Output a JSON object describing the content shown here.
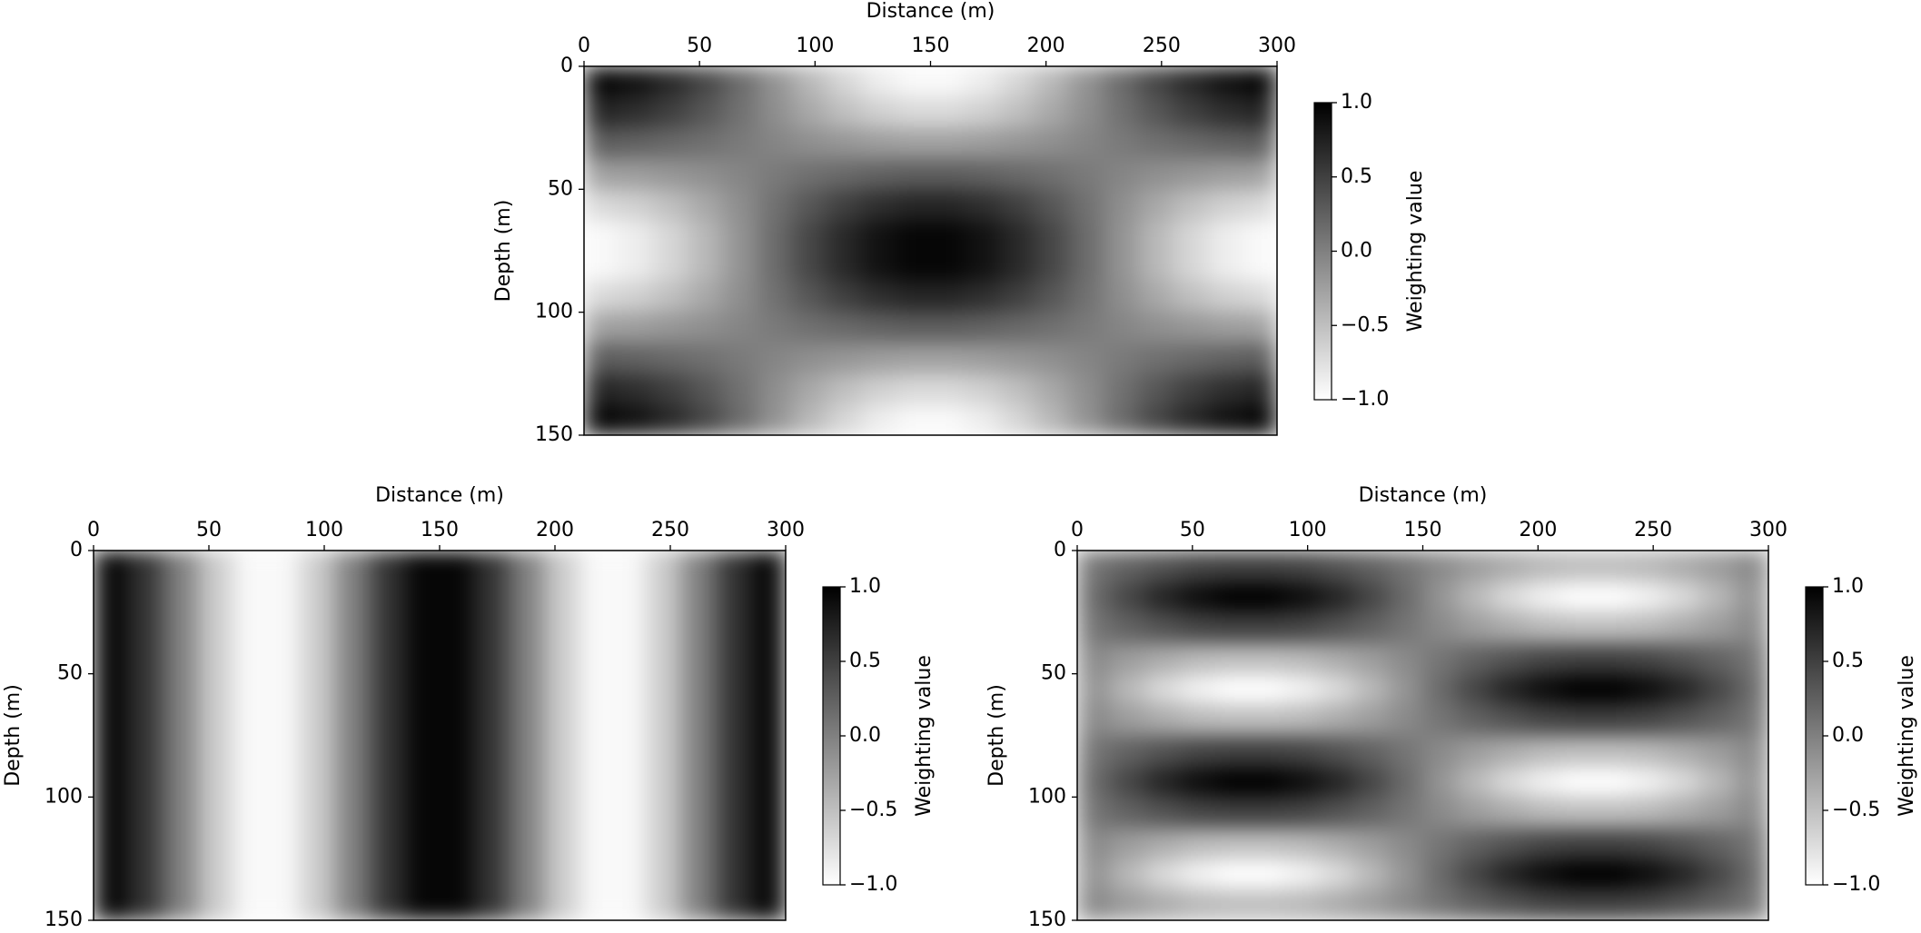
{
  "chart_data": [
    {
      "type": "heatmap",
      "xlabel": "Distance (m)",
      "ylabel": "Depth (m)",
      "x_axis_position": "top",
      "xlim": [
        0,
        300
      ],
      "ylim": [
        150,
        0
      ],
      "xticks": [
        0,
        50,
        100,
        150,
        200,
        250,
        300
      ],
      "yticks": [
        0,
        50,
        100,
        150
      ],
      "x": [
        7.5,
        22.5,
        37.5,
        52.5,
        67.5,
        82.5,
        97.5,
        112.5,
        127.5,
        142.5,
        157.5,
        172.5,
        187.5,
        202.5,
        217.5,
        232.5,
        247.5,
        262.5,
        277.5,
        292.5
      ],
      "y": [
        6.25,
        18.75,
        31.25,
        43.75,
        56.25,
        68.75,
        81.25,
        93.75,
        106.25,
        118.75,
        131.25,
        143.75
      ],
      "values": [
        [
          0.95,
          0.86,
          0.68,
          0.44,
          0.15,
          -0.15,
          -0.44,
          -0.68,
          -0.86,
          -0.95,
          -0.95,
          -0.86,
          -0.68,
          -0.44,
          -0.15,
          0.15,
          0.44,
          0.68,
          0.86,
          0.95
        ],
        [
          0.7,
          0.63,
          0.5,
          0.32,
          0.11,
          -0.11,
          -0.32,
          -0.5,
          -0.63,
          -0.7,
          -0.7,
          -0.63,
          -0.5,
          -0.32,
          -0.11,
          0.11,
          0.32,
          0.5,
          0.63,
          0.7
        ],
        [
          0.26,
          0.23,
          0.18,
          0.12,
          0.04,
          -0.04,
          -0.12,
          -0.18,
          -0.23,
          -0.26,
          -0.26,
          -0.23,
          -0.18,
          -0.12,
          -0.04,
          0.04,
          0.12,
          0.18,
          0.23,
          0.26
        ],
        [
          -0.26,
          -0.23,
          -0.18,
          -0.12,
          -0.04,
          0.04,
          0.12,
          0.18,
          0.23,
          0.26,
          0.26,
          0.23,
          0.18,
          0.12,
          0.04,
          -0.04,
          -0.12,
          -0.18,
          -0.23,
          -0.26
        ],
        [
          -0.7,
          -0.63,
          -0.5,
          -0.32,
          -0.11,
          0.11,
          0.32,
          0.5,
          0.63,
          0.7,
          0.7,
          0.63,
          0.5,
          0.32,
          0.11,
          -0.11,
          -0.32,
          -0.5,
          -0.63,
          -0.7
        ],
        [
          -0.95,
          -0.86,
          -0.68,
          -0.44,
          -0.15,
          0.15,
          0.44,
          0.68,
          0.86,
          0.95,
          0.95,
          0.86,
          0.68,
          0.44,
          0.15,
          -0.15,
          -0.44,
          -0.68,
          -0.86,
          -0.95
        ],
        [
          -0.95,
          -0.86,
          -0.68,
          -0.44,
          -0.15,
          0.15,
          0.44,
          0.68,
          0.86,
          0.95,
          0.95,
          0.86,
          0.68,
          0.44,
          0.15,
          -0.15,
          -0.44,
          -0.68,
          -0.86,
          -0.95
        ],
        [
          -0.7,
          -0.63,
          -0.5,
          -0.32,
          -0.11,
          0.11,
          0.32,
          0.5,
          0.63,
          0.7,
          0.7,
          0.63,
          0.5,
          0.32,
          0.11,
          -0.11,
          -0.32,
          -0.5,
          -0.63,
          -0.7
        ],
        [
          -0.26,
          -0.23,
          -0.18,
          -0.12,
          -0.04,
          0.04,
          0.12,
          0.18,
          0.23,
          0.26,
          0.26,
          0.23,
          0.18,
          0.12,
          0.04,
          -0.04,
          -0.12,
          -0.18,
          -0.23,
          -0.26
        ],
        [
          0.26,
          0.23,
          0.18,
          0.12,
          0.04,
          -0.04,
          -0.12,
          -0.18,
          -0.23,
          -0.26,
          -0.26,
          -0.23,
          -0.18,
          -0.12,
          -0.04,
          0.04,
          0.12,
          0.18,
          0.23,
          0.26
        ],
        [
          0.7,
          0.63,
          0.5,
          0.32,
          0.11,
          -0.11,
          -0.32,
          -0.5,
          -0.63,
          -0.7,
          -0.7,
          -0.63,
          -0.5,
          -0.32,
          -0.11,
          0.11,
          0.32,
          0.5,
          0.63,
          0.7
        ],
        [
          0.95,
          0.86,
          0.68,
          0.44,
          0.15,
          -0.15,
          -0.44,
          -0.68,
          -0.86,
          -0.95,
          -0.95,
          -0.86,
          -0.68,
          -0.44,
          -0.15,
          0.15,
          0.44,
          0.68,
          0.86,
          0.95
        ]
      ],
      "colormap": "gray_r",
      "clim": [
        -1,
        1
      ],
      "colorbar_label": "Weighting value",
      "colorbar_ticks": [
        {
          "value": -1,
          "label": "−1.0"
        },
        {
          "value": -0.5,
          "label": "−0.5"
        },
        {
          "value": 0,
          "label": "0.0"
        },
        0.5,
        {
          "value": 1,
          "label": "1.0"
        }
      ]
    },
    {
      "type": "heatmap",
      "xlabel": "Distance (m)",
      "ylabel": "Depth (m)",
      "x_axis_position": "top",
      "xlim": [
        0,
        300
      ],
      "ylim": [
        150,
        0
      ],
      "xticks": [
        0,
        50,
        100,
        150,
        200,
        250,
        300
      ],
      "yticks": [
        0,
        50,
        100,
        150
      ],
      "x": [
        7.5,
        22.5,
        37.5,
        52.5,
        67.5,
        82.5,
        97.5,
        112.5,
        127.5,
        142.5,
        157.5,
        172.5,
        187.5,
        202.5,
        217.5,
        232.5,
        247.5,
        262.5,
        277.5,
        292.5
      ],
      "y": [
        6.25,
        18.75,
        31.25,
        43.75,
        56.25,
        68.75,
        81.25,
        93.75,
        106.25,
        118.75,
        131.25,
        143.75
      ],
      "values": [
        [
          0.95,
          0.59,
          0,
          -0.59,
          -0.95,
          -0.95,
          -0.59,
          0,
          0.59,
          0.95,
          0.95,
          0.59,
          0,
          -0.59,
          -0.95,
          -0.95,
          -0.59,
          0,
          0.59,
          0.95
        ],
        [
          0.95,
          0.59,
          0,
          -0.59,
          -0.95,
          -0.95,
          -0.59,
          0,
          0.59,
          0.95,
          0.95,
          0.59,
          0,
          -0.59,
          -0.95,
          -0.95,
          -0.59,
          0,
          0.59,
          0.95
        ],
        [
          0.95,
          0.59,
          0,
          -0.59,
          -0.95,
          -0.95,
          -0.59,
          0,
          0.59,
          0.95,
          0.95,
          0.59,
          0,
          -0.59,
          -0.95,
          -0.95,
          -0.59,
          0,
          0.59,
          0.95
        ],
        [
          0.95,
          0.59,
          0,
          -0.59,
          -0.95,
          -0.95,
          -0.59,
          0,
          0.59,
          0.95,
          0.95,
          0.59,
          0,
          -0.59,
          -0.95,
          -0.95,
          -0.59,
          0,
          0.59,
          0.95
        ],
        [
          0.95,
          0.59,
          0,
          -0.59,
          -0.95,
          -0.95,
          -0.59,
          0,
          0.59,
          0.95,
          0.95,
          0.59,
          0,
          -0.59,
          -0.95,
          -0.95,
          -0.59,
          0,
          0.59,
          0.95
        ],
        [
          0.95,
          0.59,
          0,
          -0.59,
          -0.95,
          -0.95,
          -0.59,
          0,
          0.59,
          0.95,
          0.95,
          0.59,
          0,
          -0.59,
          -0.95,
          -0.95,
          -0.59,
          0,
          0.59,
          0.95
        ],
        [
          0.95,
          0.59,
          0,
          -0.59,
          -0.95,
          -0.95,
          -0.59,
          0,
          0.59,
          0.95,
          0.95,
          0.59,
          0,
          -0.59,
          -0.95,
          -0.95,
          -0.59,
          0,
          0.59,
          0.95
        ],
        [
          0.95,
          0.59,
          0,
          -0.59,
          -0.95,
          -0.95,
          -0.59,
          0,
          0.59,
          0.95,
          0.95,
          0.59,
          0,
          -0.59,
          -0.95,
          -0.95,
          -0.59,
          0,
          0.59,
          0.95
        ],
        [
          0.95,
          0.59,
          0,
          -0.59,
          -0.95,
          -0.95,
          -0.59,
          0,
          0.59,
          0.95,
          0.95,
          0.59,
          0,
          -0.59,
          -0.95,
          -0.95,
          -0.59,
          0,
          0.59,
          0.95
        ],
        [
          0.95,
          0.59,
          0,
          -0.59,
          -0.95,
          -0.95,
          -0.59,
          0,
          0.59,
          0.95,
          0.95,
          0.59,
          0,
          -0.59,
          -0.95,
          -0.95,
          -0.59,
          0,
          0.59,
          0.95
        ],
        [
          0.95,
          0.59,
          0,
          -0.59,
          -0.95,
          -0.95,
          -0.59,
          0,
          0.59,
          0.95,
          0.95,
          0.59,
          0,
          -0.59,
          -0.95,
          -0.95,
          -0.59,
          0,
          0.59,
          0.95
        ],
        [
          0.95,
          0.59,
          0,
          -0.59,
          -0.95,
          -0.95,
          -0.59,
          0,
          0.59,
          0.95,
          0.95,
          0.59,
          0,
          -0.59,
          -0.95,
          -0.95,
          -0.59,
          0,
          0.59,
          0.95
        ]
      ],
      "colormap": "gray_r",
      "clim": [
        -1,
        1
      ],
      "colorbar_label": "Weighting value",
      "colorbar_ticks": [
        {
          "value": -1,
          "label": "−1.0"
        },
        {
          "value": -0.5,
          "label": "−0.5"
        },
        {
          "value": 0,
          "label": "0.0"
        },
        0.5,
        {
          "value": 1,
          "label": "1.0"
        }
      ]
    },
    {
      "type": "heatmap",
      "xlabel": "Distance (m)",
      "ylabel": "Depth (m)",
      "x_axis_position": "top",
      "xlim": [
        0,
        300
      ],
      "ylim": [
        150,
        0
      ],
      "xticks": [
        0,
        50,
        100,
        150,
        200,
        250,
        300
      ],
      "yticks": [
        0,
        50,
        100,
        150
      ],
      "x": [
        7.5,
        22.5,
        37.5,
        52.5,
        67.5,
        82.5,
        97.5,
        112.5,
        127.5,
        142.5,
        157.5,
        172.5,
        187.5,
        202.5,
        217.5,
        232.5,
        247.5,
        262.5,
        277.5,
        292.5
      ],
      "y": [
        6.25,
        18.75,
        31.25,
        43.75,
        56.25,
        68.75,
        81.25,
        93.75,
        106.25,
        118.75,
        131.25,
        143.75
      ],
      "values": [
        [
          0.08,
          0.23,
          0.35,
          0.45,
          0.49,
          0.49,
          0.45,
          0.35,
          0.23,
          0.08,
          -0.08,
          -0.23,
          -0.35,
          -0.45,
          -0.49,
          -0.49,
          -0.45,
          -0.35,
          -0.23,
          -0.08
        ],
        [
          0.16,
          0.45,
          0.71,
          0.89,
          0.99,
          0.99,
          0.89,
          0.71,
          0.45,
          0.16,
          -0.16,
          -0.45,
          -0.71,
          -0.89,
          -0.99,
          -0.99,
          -0.89,
          -0.71,
          -0.45,
          -0.16
        ],
        [
          0.08,
          0.23,
          0.35,
          0.45,
          0.49,
          0.49,
          0.45,
          0.35,
          0.23,
          0.08,
          -0.08,
          -0.23,
          -0.35,
          -0.45,
          -0.49,
          -0.49,
          -0.45,
          -0.35,
          -0.23,
          -0.08
        ],
        [
          -0.08,
          -0.23,
          -0.35,
          -0.45,
          -0.49,
          -0.49,
          -0.45,
          -0.35,
          -0.23,
          -0.08,
          0.08,
          0.23,
          0.35,
          0.45,
          0.49,
          0.49,
          0.45,
          0.35,
          0.23,
          0.08
        ],
        [
          -0.16,
          -0.45,
          -0.71,
          -0.89,
          -0.99,
          -0.99,
          -0.89,
          -0.71,
          -0.45,
          -0.16,
          0.16,
          0.45,
          0.71,
          0.89,
          0.99,
          0.99,
          0.89,
          0.71,
          0.45,
          0.16
        ],
        [
          -0.08,
          -0.23,
          -0.35,
          -0.45,
          -0.49,
          -0.49,
          -0.45,
          -0.35,
          -0.23,
          -0.08,
          0.08,
          0.23,
          0.35,
          0.45,
          0.49,
          0.49,
          0.45,
          0.35,
          0.23,
          0.08
        ],
        [
          0.08,
          0.23,
          0.35,
          0.45,
          0.49,
          0.49,
          0.45,
          0.35,
          0.23,
          0.08,
          -0.08,
          -0.23,
          -0.35,
          -0.45,
          -0.49,
          -0.49,
          -0.45,
          -0.35,
          -0.23,
          -0.08
        ],
        [
          0.16,
          0.45,
          0.71,
          0.89,
          0.99,
          0.99,
          0.89,
          0.71,
          0.45,
          0.16,
          -0.16,
          -0.45,
          -0.71,
          -0.89,
          -0.99,
          -0.99,
          -0.89,
          -0.71,
          -0.45,
          -0.16
        ],
        [
          0.08,
          0.23,
          0.35,
          0.45,
          0.49,
          0.49,
          0.45,
          0.35,
          0.23,
          0.08,
          -0.08,
          -0.23,
          -0.35,
          -0.45,
          -0.49,
          -0.49,
          -0.45,
          -0.35,
          -0.23,
          -0.08
        ],
        [
          -0.08,
          -0.23,
          -0.35,
          -0.45,
          -0.49,
          -0.49,
          -0.45,
          -0.35,
          -0.23,
          -0.08,
          0.08,
          0.23,
          0.35,
          0.45,
          0.49,
          0.49,
          0.45,
          0.35,
          0.23,
          0.08
        ],
        [
          -0.16,
          -0.45,
          -0.71,
          -0.89,
          -0.99,
          -0.99,
          -0.89,
          -0.71,
          -0.45,
          -0.16,
          0.16,
          0.45,
          0.71,
          0.89,
          0.99,
          0.99,
          0.89,
          0.71,
          0.45,
          0.16
        ],
        [
          -0.08,
          -0.23,
          -0.35,
          -0.45,
          -0.49,
          -0.49,
          -0.45,
          -0.35,
          -0.23,
          -0.08,
          0.08,
          0.23,
          0.35,
          0.45,
          0.49,
          0.49,
          0.45,
          0.35,
          0.23,
          0.08
        ]
      ],
      "colormap": "gray_r",
      "clim": [
        -1,
        1
      ],
      "colorbar_label": "Weighting value",
      "colorbar_ticks": [
        {
          "value": -1,
          "label": "−1.0"
        },
        {
          "value": -0.5,
          "label": "−0.5"
        },
        {
          "value": 0,
          "label": "0.0"
        },
        0.5,
        {
          "value": 1,
          "label": "1.0"
        }
      ]
    }
  ]
}
